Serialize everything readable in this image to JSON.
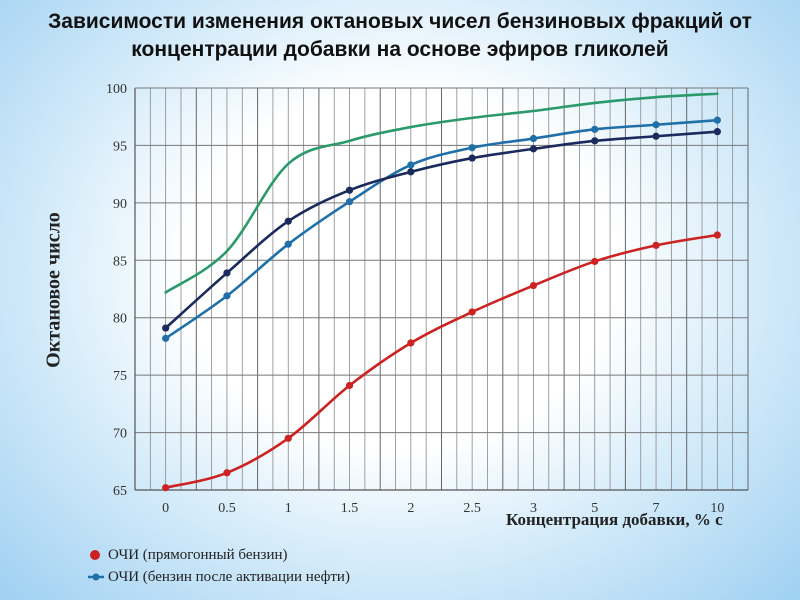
{
  "chart_data": {
    "type": "line",
    "title": "Зависимости изменения октановых чисел бензиновых фракций от концентрации добавки на основе эфиров гликолей",
    "xlabel": "Концентрация добавки, % с",
    "ylabel": "Октановое число",
    "categories": [
      "0",
      "0.5",
      "1",
      "1.5",
      "2",
      "2.5",
      "3",
      "5",
      "7",
      "10"
    ],
    "ylim": [
      65,
      100
    ],
    "yticks": [
      65,
      70,
      75,
      80,
      85,
      90,
      95,
      100
    ],
    "grid": true,
    "legend_position": "bottom-left",
    "series": [
      {
        "name": "ОЧИ (прямогонный бензин)",
        "color": "#cc2222",
        "markers": true,
        "values": [
          65.2,
          66.5,
          69.5,
          74.1,
          77.8,
          80.5,
          82.8,
          84.9,
          86.3,
          87.2
        ]
      },
      {
        "name": "ОЧИ (бензин после активации нефти)",
        "color": "#1f6fa8",
        "markers": true,
        "values": [
          78.2,
          81.9,
          86.4,
          90.1,
          93.3,
          94.8,
          95.6,
          96.4,
          96.8,
          97.2
        ]
      },
      {
        "name": "",
        "color": "#1a2a5c",
        "markers": true,
        "values": [
          79.1,
          83.9,
          88.4,
          91.1,
          92.7,
          93.9,
          94.7,
          95.4,
          95.8,
          96.2
        ]
      },
      {
        "name": "",
        "color": "#2a9a6a",
        "markers": false,
        "values": [
          82.2,
          85.8,
          93.4,
          95.4,
          96.6,
          97.4,
          98.0,
          98.7,
          99.2,
          99.5
        ]
      }
    ]
  }
}
